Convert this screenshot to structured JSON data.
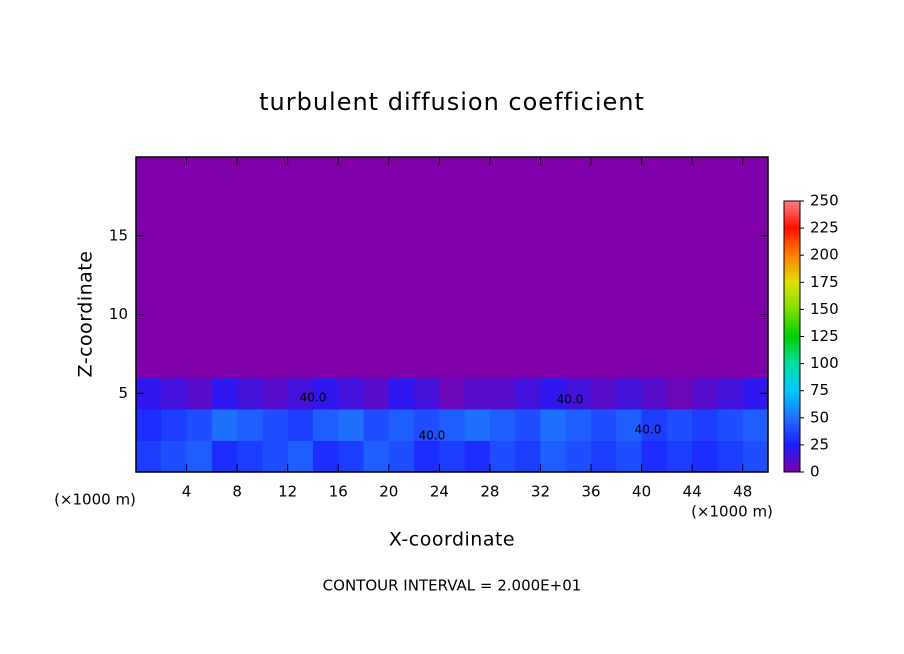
{
  "chart_data": {
    "type": "heatmap",
    "title": "turbulent diffusion coefficient",
    "x_label": "X-coordinate",
    "y_label": "Z-coordinate",
    "x_unit": "(×1000 m)",
    "y_unit": "(×1000 m)",
    "note": "CONTOUR INTERVAL = 2.000E+01",
    "contour_labels": [
      "40.0",
      "40.0",
      "40.0",
      "40.0"
    ],
    "x": [
      1,
      3,
      5,
      7,
      9,
      11,
      13,
      15,
      17,
      19,
      21,
      23,
      25,
      27,
      29,
      31,
      33,
      35,
      37,
      39,
      41,
      43,
      45,
      47,
      49
    ],
    "y": [
      1,
      3,
      5,
      7,
      9,
      11,
      13,
      15,
      17,
      19
    ],
    "z": [
      [
        35,
        40,
        45,
        30,
        35,
        40,
        45,
        30,
        35,
        45,
        40,
        30,
        35,
        30,
        40,
        35,
        45,
        40,
        35,
        40,
        30,
        35,
        30,
        35,
        40
      ],
      [
        30,
        35,
        40,
        50,
        45,
        40,
        35,
        45,
        50,
        40,
        45,
        40,
        45,
        50,
        45,
        40,
        50,
        45,
        40,
        45,
        35,
        40,
        35,
        40,
        45
      ],
      [
        20,
        15,
        10,
        20,
        15,
        10,
        15,
        20,
        15,
        10,
        20,
        15,
        5,
        10,
        10,
        15,
        20,
        15,
        10,
        15,
        10,
        5,
        10,
        15,
        20
      ],
      [
        0,
        0,
        0,
        0,
        0,
        0,
        0,
        0,
        0,
        0,
        0,
        0,
        0,
        0,
        0,
        0,
        0,
        0,
        0,
        0,
        0,
        0,
        0,
        0,
        0
      ],
      [
        0,
        0,
        0,
        0,
        0,
        0,
        0,
        0,
        0,
        0,
        0,
        0,
        0,
        0,
        0,
        0,
        0,
        0,
        0,
        0,
        0,
        0,
        0,
        0,
        0
      ],
      [
        0,
        0,
        0,
        0,
        0,
        0,
        0,
        0,
        0,
        0,
        0,
        0,
        0,
        0,
        0,
        0,
        0,
        0,
        0,
        0,
        0,
        0,
        0,
        0,
        0
      ],
      [
        0,
        0,
        0,
        0,
        0,
        0,
        0,
        0,
        0,
        0,
        0,
        0,
        0,
        0,
        0,
        0,
        0,
        0,
        0,
        0,
        0,
        0,
        0,
        0,
        0
      ],
      [
        0,
        0,
        0,
        0,
        0,
        0,
        0,
        0,
        0,
        0,
        0,
        0,
        0,
        0,
        0,
        0,
        0,
        0,
        0,
        0,
        0,
        0,
        0,
        0,
        0
      ],
      [
        0,
        0,
        0,
        0,
        0,
        0,
        0,
        0,
        0,
        0,
        0,
        0,
        0,
        0,
        0,
        0,
        0,
        0,
        0,
        0,
        0,
        0,
        0,
        0,
        0
      ],
      [
        0,
        0,
        0,
        0,
        0,
        0,
        0,
        0,
        0,
        0,
        0,
        0,
        0,
        0,
        0,
        0,
        0,
        0,
        0,
        0,
        0,
        0,
        0,
        0,
        0
      ]
    ],
    "xlim": [
      0,
      50
    ],
    "ylim": [
      0,
      20
    ],
    "xticks": [
      4,
      8,
      12,
      16,
      20,
      24,
      28,
      32,
      36,
      40,
      44,
      48
    ],
    "yticks": [
      5,
      10,
      15
    ],
    "clim": [
      0,
      250
    ],
    "cticks": [
      0,
      25,
      50,
      75,
      100,
      125,
      150,
      175,
      200,
      225,
      250
    ],
    "colors": [
      "#7f00a8",
      "#1c1cff",
      "#1f6fff",
      "#00c8ff",
      "#00e0a0",
      "#00d000",
      "#80e000",
      "#e0e000",
      "#ff8000",
      "#ff1000",
      "#ff8080"
    ]
  }
}
